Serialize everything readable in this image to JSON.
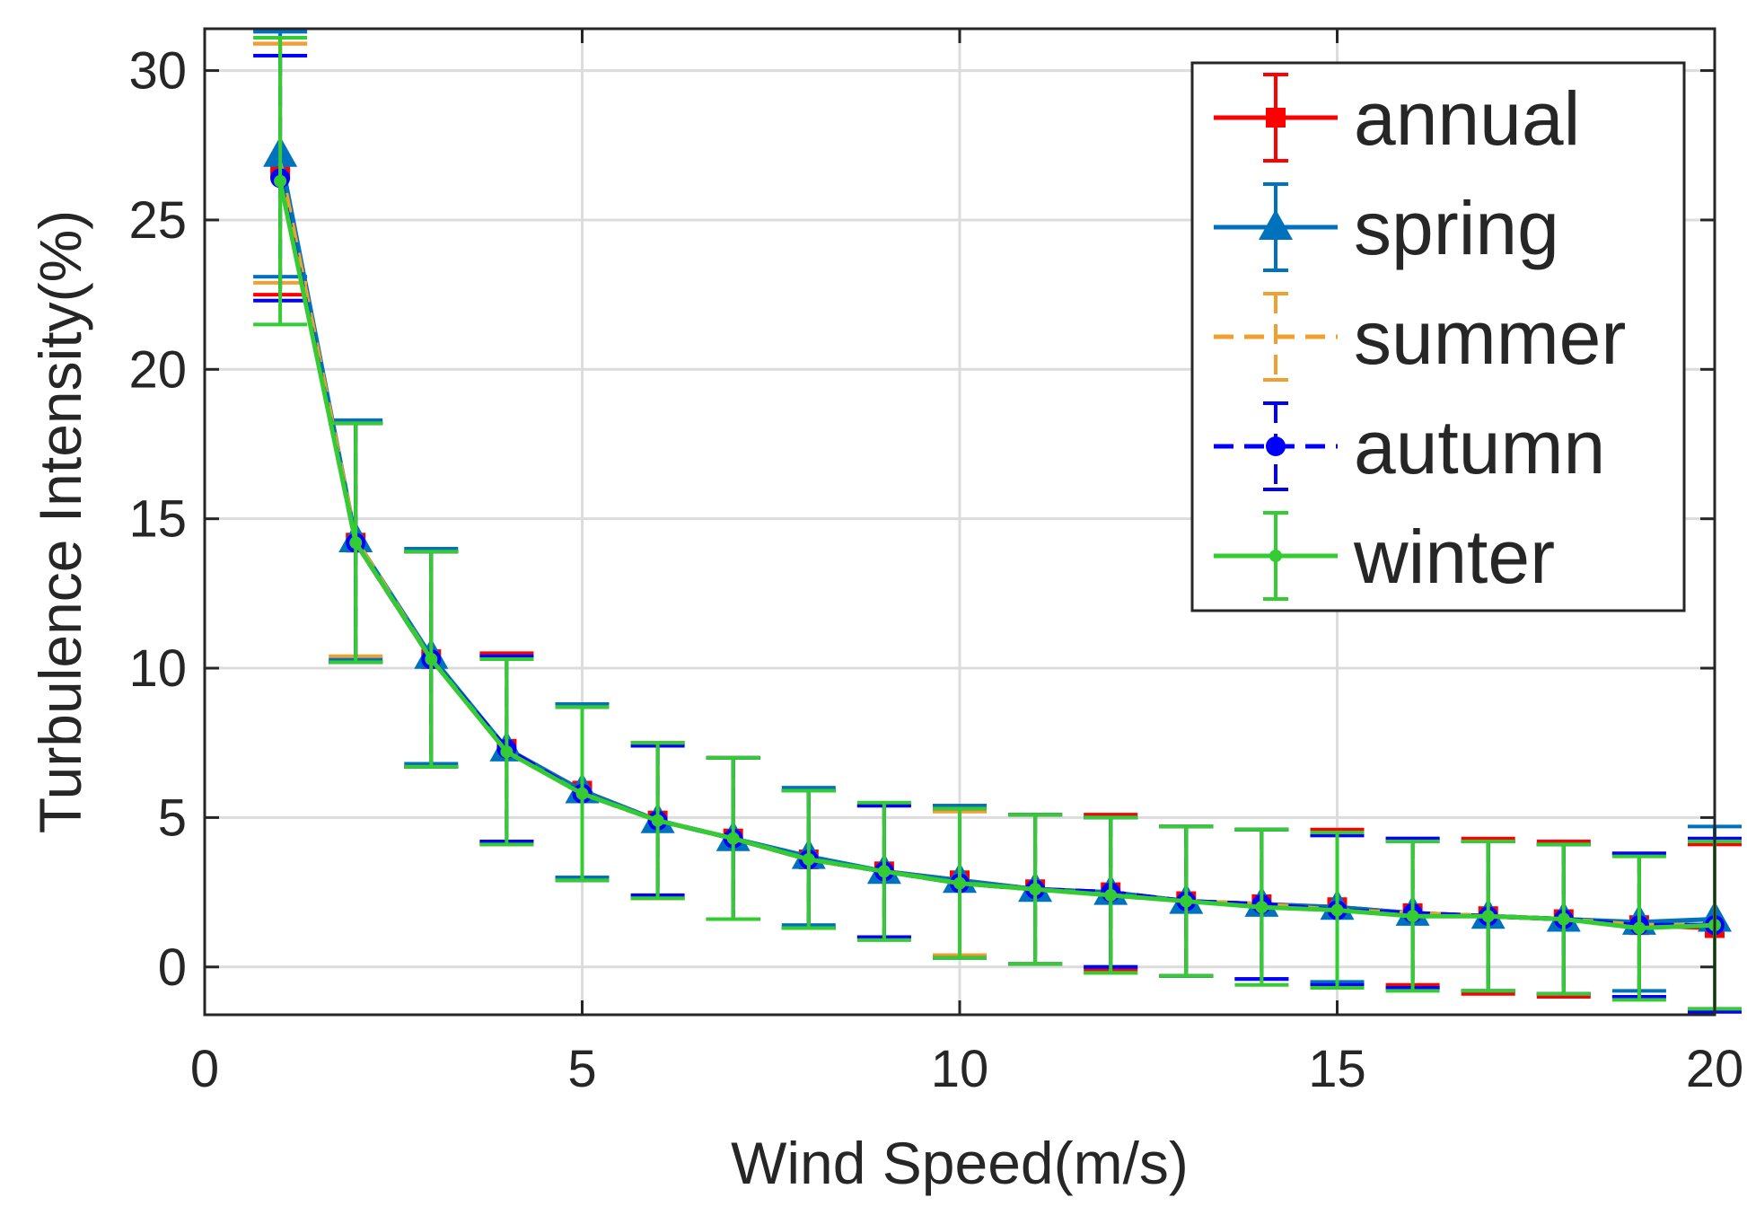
{
  "chart_data": {
    "type": "line",
    "title": "",
    "xlabel": "Wind Speed(m/s)",
    "ylabel": "Turbulence Intensity(%)",
    "xlim": [
      0,
      20
    ],
    "ylim": [
      -1.6,
      31.4
    ],
    "xticks": [
      0,
      5,
      10,
      15,
      20
    ],
    "yticks": [
      0,
      5,
      10,
      15,
      20,
      25,
      30
    ],
    "grid": true,
    "legend_position": "top-right",
    "error_bars": true,
    "x": [
      1,
      2,
      3,
      4,
      5,
      6,
      7,
      8,
      9,
      10,
      11,
      12,
      13,
      14,
      15,
      16,
      17,
      18,
      19,
      20
    ],
    "series": [
      {
        "name": "annual",
        "color": "#ff0000",
        "line_style": "solid",
        "marker": "square",
        "values": [
          26.7,
          14.2,
          10.3,
          7.3,
          5.9,
          4.9,
          4.3,
          3.6,
          3.2,
          2.9,
          2.6,
          2.5,
          2.2,
          2.1,
          2.0,
          1.8,
          1.7,
          1.6,
          1.4,
          1.3
        ],
        "errors": [
          4.2,
          4.0,
          3.6,
          3.2,
          2.9,
          2.6,
          2.7,
          2.3,
          2.2,
          2.5,
          2.5,
          2.6,
          2.5,
          2.5,
          2.6,
          2.4,
          2.6,
          2.6,
          2.4,
          2.8
        ]
      },
      {
        "name": "spring",
        "color": "#0072bd",
        "line_style": "solid",
        "marker": "triangle",
        "values": [
          27.2,
          14.3,
          10.4,
          7.3,
          5.9,
          4.9,
          4.3,
          3.7,
          3.2,
          2.9,
          2.6,
          2.5,
          2.2,
          2.1,
          2.0,
          1.8,
          1.7,
          1.6,
          1.5,
          1.6
        ],
        "errors": [
          4.1,
          4.0,
          3.6,
          3.1,
          2.9,
          2.6,
          2.7,
          2.3,
          2.2,
          2.5,
          2.5,
          2.5,
          2.5,
          2.5,
          2.5,
          2.5,
          2.5,
          2.5,
          2.3,
          3.1
        ]
      },
      {
        "name": "summer",
        "color": "#f0a030",
        "line_style": "dashed",
        "marker": "none",
        "values": [
          26.9,
          14.3,
          10.3,
          7.2,
          5.8,
          4.9,
          4.3,
          3.6,
          3.2,
          2.8,
          2.6,
          2.4,
          2.2,
          2.1,
          1.9,
          1.8,
          1.7,
          1.6,
          1.4,
          1.4
        ],
        "errors": [
          4.0,
          3.9,
          3.6,
          3.1,
          2.9,
          2.6,
          2.7,
          2.3,
          2.2,
          2.4,
          2.5,
          2.6,
          2.5,
          2.5,
          2.6,
          2.5,
          2.5,
          2.5,
          2.4,
          2.8
        ]
      },
      {
        "name": "autumn",
        "color": "#0000ff",
        "line_style": "dashed",
        "marker": "circle",
        "values": [
          26.4,
          14.2,
          10.3,
          7.3,
          5.8,
          4.9,
          4.3,
          3.6,
          3.2,
          2.8,
          2.6,
          2.5,
          2.2,
          2.1,
          1.9,
          1.8,
          1.7,
          1.6,
          1.4,
          1.4
        ],
        "errors": [
          4.1,
          4.0,
          3.6,
          3.1,
          2.9,
          2.5,
          2.7,
          2.3,
          2.2,
          2.5,
          2.5,
          2.5,
          2.5,
          2.5,
          2.5,
          2.5,
          2.5,
          2.5,
          2.4,
          2.9
        ]
      },
      {
        "name": "winter",
        "color": "#33cc33",
        "line_style": "solid",
        "marker": "dot",
        "values": [
          26.3,
          14.2,
          10.3,
          7.2,
          5.8,
          4.9,
          4.3,
          3.6,
          3.2,
          2.8,
          2.6,
          2.4,
          2.2,
          2.0,
          1.9,
          1.7,
          1.7,
          1.6,
          1.3,
          1.4
        ],
        "errors": [
          4.8,
          4.0,
          3.6,
          3.1,
          2.9,
          2.6,
          2.7,
          2.3,
          2.3,
          2.5,
          2.5,
          2.6,
          2.5,
          2.6,
          2.6,
          2.5,
          2.5,
          2.5,
          2.4,
          2.8
        ]
      }
    ]
  }
}
